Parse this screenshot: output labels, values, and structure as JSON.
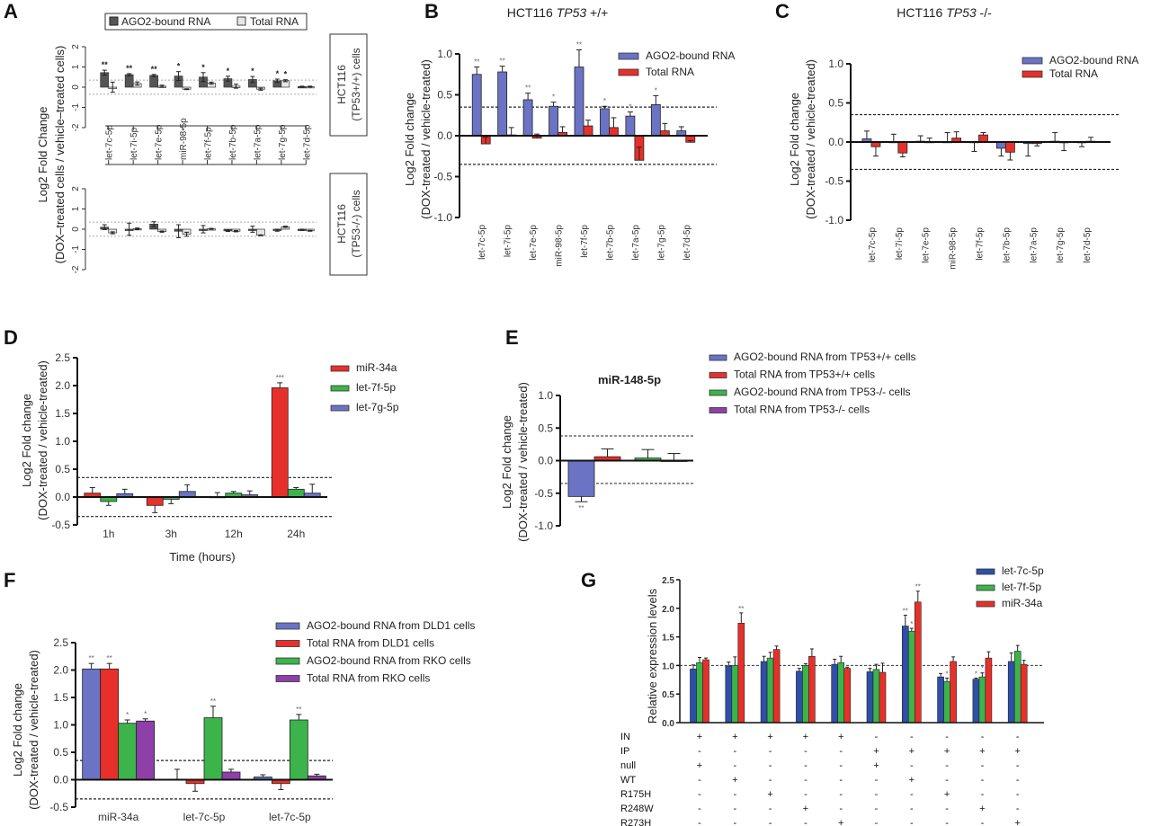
{
  "colors": {
    "ago2_blue": "#6b73c4",
    "total_red": "#e8302a",
    "green": "#3cb44b",
    "purple": "#8e3fa8",
    "dark_blue": "#2f4fa8",
    "dark_gray": "#555555",
    "light_gray": "#e6e6e6"
  },
  "chart_data": [
    {
      "panel": "A",
      "type": "bar",
      "title": "",
      "ylabel": "Log2 Fold Change (DOX-treated cells / vehicle-treated cells)",
      "legend": [
        "AGO2-bound RNA",
        "Total RNA"
      ],
      "legend_position": "top",
      "categories": [
        "let-7c-5p",
        "let-7i-5p",
        "let-7e-5p",
        "miR-98-5p",
        "let-7f-5p",
        "let-7b-5p",
        "let-7a-5p",
        "let-7g-5p",
        "let-7d-5p"
      ],
      "ylim": [
        -2,
        2
      ],
      "yticks": [
        -2,
        -1,
        0,
        1,
        2
      ],
      "threshold_lines": [
        0.35,
        -0.35
      ],
      "subplots": [
        {
          "label": "HCT116 (TP53+/+) cells",
          "series": [
            {
              "name": "AGO2-bound RNA",
              "values": [
                0.72,
                0.62,
                0.58,
                0.55,
                0.5,
                0.42,
                0.38,
                0.32,
                0.03
              ],
              "errors": [
                0.12,
                0.05,
                0.05,
                0.22,
                0.22,
                0.12,
                0.15,
                0.08,
                0.02
              ],
              "sig": [
                "**",
                "**",
                "**",
                "*",
                "*",
                "*",
                "*",
                "*",
                ""
              ]
            },
            {
              "name": "Total RNA",
              "values": [
                0.0,
                0.18,
                0.05,
                -0.1,
                0.2,
                0.05,
                -0.1,
                0.32,
                0.03
              ],
              "errors": [
                0.25,
                0.08,
                0.05,
                0.02,
                0.05,
                0.1,
                0.05,
                0.05,
                0.02
              ],
              "sig": [
                "",
                "",
                "",
                "",
                "",
                "",
                "",
                "*",
                ""
              ]
            }
          ]
        },
        {
          "label": "HCT116 (TP53-/-) cells",
          "series": [
            {
              "name": "AGO2-bound RNA",
              "values": [
                0.1,
                0.0,
                0.25,
                -0.1,
                0.0,
                -0.08,
                0.0,
                -0.05,
                -0.03
              ],
              "errors": [
                0.12,
                0.3,
                0.12,
                0.32,
                0.18,
                0.03,
                0.15,
                0.05,
                0.03
              ],
              "sig": [
                "",
                "",
                "",
                "",
                "",
                "",
                "",
                "",
                ""
              ]
            },
            {
              "name": "Total RNA",
              "values": [
                -0.18,
                0.03,
                -0.12,
                -0.25,
                0.02,
                -0.1,
                -0.3,
                0.12,
                -0.08
              ],
              "errors": [
                0.05,
                0.03,
                0.03,
                0.1,
                0.02,
                0.03,
                0.02,
                0.03,
                0.02
              ],
              "sig": [
                "",
                "",
                "",
                "",
                "",
                "",
                "",
                "",
                ""
              ]
            }
          ]
        }
      ]
    },
    {
      "panel": "B",
      "type": "bar",
      "title": "HCT116 TP53 +/+",
      "title_plain": "HCT116 ",
      "title_italic": "TP53",
      "title_suffix": " +/+",
      "ylabel": "Log2 Fold change (DOX-treated / vehicle-treated)",
      "categories": [
        "let-7c-5p",
        "let-7i-5p",
        "let-7e-5p",
        "miR-98-5p",
        "let-7f-5p",
        "let-7b-5p",
        "let-7a-5p",
        "let-7g-5p",
        "let-7d-5p"
      ],
      "ylim": [
        -1.0,
        1.0
      ],
      "yticks": [
        -1.0,
        -0.5,
        0.0,
        0.5,
        1.0
      ],
      "threshold_lines": [
        0.35,
        -0.35
      ],
      "legend_position": "top-right",
      "series": [
        {
          "name": "AGO2-bound RNA",
          "values": [
            0.75,
            0.78,
            0.44,
            0.36,
            0.84,
            0.33,
            0.24,
            0.38,
            0.06
          ],
          "errors": [
            0.09,
            0.07,
            0.08,
            0.05,
            0.21,
            0.03,
            0.05,
            0.11,
            0.05
          ],
          "sig": [
            "**",
            "**",
            "**",
            "*",
            "**",
            "*",
            "*",
            "*",
            ""
          ]
        },
        {
          "name": "Total RNA",
          "values": [
            -0.1,
            0.01,
            -0.03,
            0.04,
            0.12,
            0.1,
            -0.3,
            0.06,
            -0.08
          ],
          "errors": [
            0.08,
            0.09,
            0.05,
            0.07,
            0.07,
            0.12,
            0.16,
            0.09,
            0.02
          ],
          "sig": [
            "",
            "",
            "",
            "",
            "",
            "",
            "",
            "",
            ""
          ]
        }
      ]
    },
    {
      "panel": "C",
      "type": "bar",
      "title": "HCT116 TP53 -/-",
      "title_plain": "HCT116 ",
      "title_italic": "TP53",
      "title_suffix": " -/-",
      "ylabel": "Log2 Fold change (DOX-treated / vehicle-treated)",
      "categories": [
        "let-7c-5p",
        "let-7i-5p",
        "let-7e-5p",
        "miR-98-5p",
        "let-7f-5p",
        "let-7b-5p",
        "let-7a-5p",
        "let-7g-5p",
        "let-7d-5p"
      ],
      "ylim": [
        -1.0,
        1.0
      ],
      "yticks": [
        -1.0,
        -0.5,
        0.0,
        0.5,
        1.0
      ],
      "threshold_lines": [
        0.35,
        -0.35
      ],
      "legend_position": "top-right",
      "series": [
        {
          "name": "AGO2-bound RNA",
          "values": [
            0.04,
            0.0,
            0.01,
            0.0,
            0.0,
            -0.08,
            -0.02,
            0.01,
            -0.01
          ],
          "errors": [
            0.1,
            0.1,
            0.07,
            0.12,
            -0.12,
            -0.1,
            -0.16,
            0.11,
            -0.05
          ],
          "sig": [
            "",
            "",
            "",
            "",
            "",
            "",
            "",
            "",
            ""
          ]
        },
        {
          "name": "Total RNA",
          "values": [
            -0.06,
            -0.14,
            0.0,
            0.05,
            0.09,
            -0.13,
            -0.02,
            -0.01,
            0.01
          ],
          "errors": [
            -0.12,
            -0.05,
            0.05,
            0.08,
            0.03,
            -0.1,
            -0.03,
            -0.1,
            0.05
          ],
          "sig": [
            "",
            "",
            "",
            "",
            "",
            "",
            "",
            "",
            ""
          ]
        }
      ]
    },
    {
      "panel": "D",
      "type": "bar",
      "title": "",
      "xlabel": "Time (hours)",
      "ylabel": "Log2 Fold change (DOX-treated / vehicle-treated)",
      "categories": [
        "1h",
        "3h",
        "12h",
        "24h"
      ],
      "ylim": [
        -0.5,
        2.5
      ],
      "yticks": [
        -0.5,
        0.0,
        0.5,
        1.0,
        1.5,
        2.0,
        2.5
      ],
      "threshold_lines": [
        0.35,
        -0.35
      ],
      "legend_position": "right",
      "series": [
        {
          "name": "miR-34a",
          "values": [
            0.07,
            -0.15,
            0.0,
            1.96
          ],
          "errors": [
            0.1,
            -0.13,
            0.08,
            0.09
          ],
          "sig": [
            "",
            "",
            "",
            "***"
          ]
        },
        {
          "name": "let-7f-5p",
          "values": [
            -0.08,
            -0.04,
            0.07,
            0.14
          ],
          "errors": [
            -0.07,
            -0.08,
            0.03,
            0.03
          ],
          "sig": [
            "",
            "",
            "",
            ""
          ]
        },
        {
          "name": "let-7g-5p",
          "values": [
            0.06,
            0.1,
            0.04,
            0.07
          ],
          "errors": [
            0.08,
            0.12,
            0.07,
            0.16
          ],
          "sig": [
            "",
            "",
            "",
            ""
          ]
        }
      ]
    },
    {
      "panel": "E",
      "type": "bar",
      "title": "miR-148-5p",
      "ylabel": "Log2 Fold change (DOX-treated / vehicle-treated)",
      "categories": [
        "miR-148-5p"
      ],
      "ylim": [
        -1.0,
        1.0
      ],
      "yticks": [
        -1.0,
        -0.5,
        0.0,
        0.5,
        1.0
      ],
      "threshold_lines": [
        0.38,
        -0.35
      ],
      "legend_position": "top-right",
      "series": [
        {
          "name": "AGO2-bound RNA from TP53+/+ cells",
          "values": [
            -0.55
          ],
          "errors": [
            -0.08
          ],
          "sig": [
            "**"
          ]
        },
        {
          "name": "Total RNA from TP53+/+ cells",
          "values": [
            0.06
          ],
          "errors": [
            0.12
          ],
          "sig": [
            ""
          ]
        },
        {
          "name": "AGO2-bound RNA from TP53-/- cells",
          "values": [
            0.04
          ],
          "errors": [
            0.13
          ],
          "sig": [
            ""
          ]
        },
        {
          "name": "Total RNA from TP53-/- cells",
          "values": [
            0.0
          ],
          "errors": [
            0.11
          ],
          "sig": [
            ""
          ]
        }
      ]
    },
    {
      "panel": "F",
      "type": "bar",
      "title": "",
      "ylabel": "Log2 Fold change (DOX-treated / vehicle-treated)",
      "categories": [
        "miR-34a",
        "let-7c-5p",
        "let-7c-5p"
      ],
      "ylim": [
        -0.5,
        2.5
      ],
      "yticks": [
        -0.5,
        0.0,
        0.5,
        1.0,
        1.5,
        2.0,
        2.5
      ],
      "threshold_lines": [
        0.35,
        -0.35
      ],
      "legend_position": "top-right",
      "series": [
        {
          "name": "AGO2-bound RNA from DLD1 cells",
          "values": [
            2.02,
            0.01,
            0.05
          ],
          "errors": [
            0.1,
            0.18,
            0.04
          ],
          "sig": [
            "**",
            "",
            ""
          ]
        },
        {
          "name": "Total RNA from DLD1 cells",
          "values": [
            2.02,
            -0.07,
            -0.07
          ],
          "errors": [
            0.1,
            -0.14,
            -0.11
          ],
          "sig": [
            "**",
            "",
            ""
          ]
        },
        {
          "name": "AGO2-bound RNA from RKO cells",
          "values": [
            1.03,
            1.13,
            1.09
          ],
          "errors": [
            0.06,
            0.21,
            0.1
          ],
          "sig": [
            "*",
            "**",
            "**"
          ]
        },
        {
          "name": "Total RNA from RKO cells",
          "values": [
            1.07,
            0.14,
            0.07
          ],
          "errors": [
            0.04,
            0.05,
            0.03
          ],
          "sig": [
            "*",
            "",
            ""
          ]
        }
      ]
    },
    {
      "panel": "G",
      "type": "bar",
      "title": "",
      "ylabel": "Relative expression levels",
      "ylim": [
        0.0,
        2.5
      ],
      "yticks": [
        0.0,
        0.5,
        1.0,
        1.5,
        2.0,
        2.5
      ],
      "threshold_lines": [
        1.0
      ],
      "legend_position": "top-right",
      "groups": 10,
      "series": [
        {
          "name": "let-7c-5p",
          "values": [
            0.94,
            0.99,
            1.07,
            0.9,
            1.02,
            0.89,
            1.69,
            0.8,
            0.76,
            1.07
          ],
          "errors": [
            0.07,
            0.07,
            0.09,
            0.05,
            0.09,
            0.06,
            0.19,
            0.06,
            0.02,
            0.15
          ],
          "sig": [
            "",
            "",
            "",
            "",
            "",
            "",
            "**",
            "",
            "*",
            ""
          ]
        },
        {
          "name": "let-7f-5p",
          "values": [
            1.05,
            1.0,
            1.13,
            1.0,
            1.05,
            0.93,
            1.6,
            0.72,
            0.8,
            1.25
          ],
          "errors": [
            0.09,
            0.15,
            0.1,
            0.03,
            0.11,
            0.09,
            0.05,
            0.06,
            0.07,
            0.1
          ],
          "sig": [
            "",
            "",
            "",
            "",
            "",
            "",
            "*",
            "*",
            "*",
            ""
          ]
        },
        {
          "name": "miR-34a",
          "values": [
            1.1,
            1.74,
            1.28,
            1.16,
            0.95,
            0.88,
            2.11,
            1.07,
            1.13,
            1.02
          ],
          "errors": [
            0.03,
            0.18,
            0.06,
            0.13,
            0.02,
            0.16,
            0.19,
            0.08,
            0.11,
            0.07
          ],
          "sig": [
            "",
            "**",
            "",
            "",
            "",
            "",
            "**",
            "",
            "",
            ""
          ]
        }
      ],
      "condition_table": {
        "rows": [
          "IN",
          "IP",
          "null",
          "WT",
          "R175H",
          "R248W",
          "R273H"
        ],
        "values": [
          [
            "+",
            "+",
            "+",
            "+",
            "+",
            "-",
            "-",
            "-",
            "-",
            "-"
          ],
          [
            "-",
            "-",
            "-",
            "-",
            "-",
            "+",
            "+",
            "+",
            "+",
            "+"
          ],
          [
            "+",
            "-",
            "-",
            "-",
            "-",
            "+",
            "-",
            "-",
            "-",
            "-"
          ],
          [
            "-",
            "+",
            "-",
            "-",
            "-",
            "-",
            "+",
            "-",
            "-",
            "-"
          ],
          [
            "-",
            "-",
            "+",
            "-",
            "-",
            "-",
            "-",
            "+",
            "-",
            "-"
          ],
          [
            "-",
            "-",
            "-",
            "+",
            "-",
            "-",
            "-",
            "-",
            "+",
            "-"
          ],
          [
            "-",
            "-",
            "-",
            "-",
            "+",
            "-",
            "-",
            "-",
            "-",
            "+"
          ]
        ]
      }
    }
  ]
}
